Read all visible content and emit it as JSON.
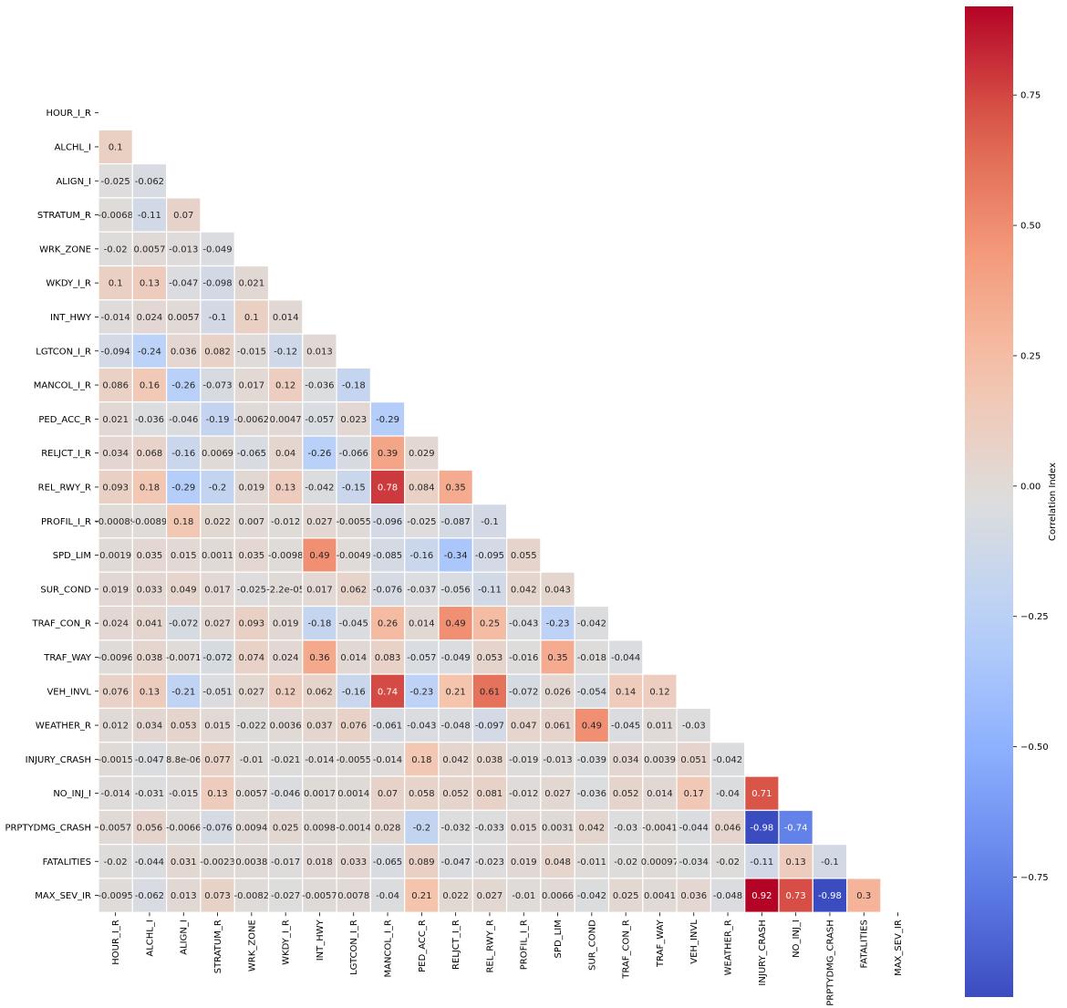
{
  "chart_data": {
    "type": "heatmap",
    "variables": [
      "HOUR_I_R",
      "ALCHL_I",
      "ALIGN_I",
      "STRATUM_R",
      "WRK_ZONE",
      "WKDY_I_R",
      "INT_HWY",
      "LGTCON_I_R",
      "MANCOL_I_R",
      "PED_ACC_R",
      "RELJCT_I_R",
      "REL_RWY_R",
      "PROFIL_I_R",
      "SPD_LIM",
      "SUR_COND",
      "TRAF_CON_R",
      "TRAF_WAY",
      "VEH_INVL",
      "WEATHER_R",
      "INJURY_CRASH",
      "NO_INJ_I",
      "PRPTYDMG_CRASH",
      "FATALITIES",
      "MAX_SEV_IR"
    ],
    "mask": "upper triangle including diagonal",
    "values": [
      [],
      [
        0.1
      ],
      [
        -0.025,
        -0.062
      ],
      [
        -0.0068,
        -0.11,
        0.07
      ],
      [
        -0.02,
        0.0057,
        -0.013,
        -0.049
      ],
      [
        0.1,
        0.13,
        -0.047,
        -0.098,
        0.021
      ],
      [
        -0.014,
        0.024,
        0.0057,
        -0.1,
        0.1,
        0.014
      ],
      [
        -0.094,
        -0.24,
        0.036,
        0.082,
        -0.015,
        -0.12,
        0.013
      ],
      [
        0.086,
        0.16,
        -0.26,
        -0.073,
        0.017,
        0.12,
        -0.036,
        -0.18
      ],
      [
        0.021,
        -0.036,
        -0.046,
        -0.19,
        -0.0062,
        0.0047,
        -0.057,
        0.023,
        -0.29
      ],
      [
        0.034,
        0.068,
        -0.16,
        0.0069,
        -0.065,
        0.04,
        -0.26,
        -0.066,
        0.39,
        0.029
      ],
      [
        0.093,
        0.18,
        -0.29,
        -0.2,
        0.019,
        0.13,
        -0.042,
        -0.15,
        0.78,
        0.084,
        0.35
      ],
      [
        -0.00089,
        -0.0089,
        0.18,
        0.022,
        0.007,
        -0.012,
        0.027,
        -0.0055,
        -0.096,
        -0.025,
        -0.087,
        -0.1
      ],
      [
        0.0019,
        0.035,
        0.015,
        0.0011,
        0.035,
        -0.0098,
        0.49,
        -0.0049,
        -0.085,
        -0.16,
        -0.34,
        -0.095,
        0.055
      ],
      [
        0.019,
        0.033,
        0.049,
        0.017,
        -0.025,
        -2.2e-05,
        0.017,
        0.062,
        -0.076,
        -0.037,
        -0.056,
        -0.11,
        0.042,
        0.043
      ],
      [
        0.024,
        0.041,
        -0.072,
        0.027,
        0.093,
        0.019,
        -0.18,
        -0.045,
        0.26,
        0.014,
        0.49,
        0.25,
        -0.043,
        -0.23,
        -0.042
      ],
      [
        -0.0096,
        0.038,
        -0.0071,
        -0.072,
        0.074,
        0.024,
        0.36,
        0.014,
        0.083,
        -0.057,
        -0.049,
        0.053,
        -0.016,
        0.35,
        -0.018,
        -0.044
      ],
      [
        0.076,
        0.13,
        -0.21,
        -0.051,
        0.027,
        0.12,
        0.062,
        -0.16,
        0.74,
        -0.23,
        0.21,
        0.61,
        -0.072,
        0.026,
        -0.054,
        0.14,
        0.12
      ],
      [
        0.012,
        0.034,
        0.053,
        0.015,
        -0.022,
        0.0036,
        0.037,
        0.076,
        -0.061,
        -0.043,
        -0.048,
        -0.097,
        0.047,
        0.061,
        0.49,
        -0.045,
        0.011,
        -0.03
      ],
      [
        -0.0015,
        -0.047,
        8.8e-06,
        0.077,
        -0.01,
        -0.021,
        -0.014,
        -0.0055,
        -0.014,
        0.18,
        0.042,
        0.038,
        -0.019,
        -0.013,
        -0.039,
        0.034,
        0.0039,
        0.051,
        -0.042
      ],
      [
        -0.014,
        -0.031,
        -0.015,
        0.13,
        0.0057,
        -0.046,
        0.0017,
        0.0014,
        0.07,
        0.058,
        0.052,
        0.081,
        -0.012,
        0.027,
        -0.036,
        0.052,
        0.014,
        0.17,
        -0.04,
        0.71
      ],
      [
        0.0057,
        0.056,
        -0.0066,
        -0.076,
        0.0094,
        0.025,
        0.0098,
        -0.0014,
        0.028,
        -0.2,
        -0.032,
        -0.033,
        0.015,
        0.0031,
        0.042,
        -0.03,
        -0.0041,
        -0.044,
        0.046,
        -0.98,
        -0.74
      ],
      [
        -0.02,
        -0.044,
        0.031,
        -0.0023,
        0.0038,
        -0.017,
        0.018,
        0.033,
        -0.065,
        0.089,
        -0.047,
        -0.023,
        0.019,
        0.048,
        -0.011,
        -0.02,
        0.00097,
        -0.034,
        -0.02,
        -0.11,
        0.13,
        -0.1
      ],
      [
        -0.0095,
        -0.062,
        0.013,
        0.073,
        -0.0082,
        -0.027,
        -0.0057,
        0.0078,
        -0.04,
        0.21,
        0.022,
        0.027,
        -0.01,
        0.0066,
        -0.042,
        0.025,
        0.0041,
        0.036,
        -0.048,
        0.92,
        0.73,
        -0.98,
        0.3
      ]
    ],
    "labels": [
      [],
      [
        "0.1"
      ],
      [
        "-0.025",
        "-0.062"
      ],
      [
        "-0.0068",
        "-0.11",
        "0.07"
      ],
      [
        "-0.02",
        "0.0057",
        "-0.013",
        "-0.049"
      ],
      [
        "0.1",
        "0.13",
        "-0.047",
        "-0.098",
        "0.021"
      ],
      [
        "-0.014",
        "0.024",
        "0.0057",
        "-0.1",
        "0.1",
        "0.014"
      ],
      [
        "-0.094",
        "-0.24",
        "0.036",
        "0.082",
        "-0.015",
        "-0.12",
        "0.013"
      ],
      [
        "0.086",
        "0.16",
        "-0.26",
        "-0.073",
        "0.017",
        "0.12",
        "-0.036",
        "-0.18"
      ],
      [
        "0.021",
        "-0.036",
        "-0.046",
        "-0.19",
        "-0.0062",
        "0.0047",
        "-0.057",
        "0.023",
        "-0.29"
      ],
      [
        "0.034",
        "0.068",
        "-0.16",
        "0.0069",
        "-0.065",
        "0.04",
        "-0.26",
        "-0.066",
        "0.39",
        "0.029"
      ],
      [
        "0.093",
        "0.18",
        "-0.29",
        "-0.2",
        "0.019",
        "0.13",
        "-0.042",
        "-0.15",
        "0.78",
        "0.084",
        "0.35"
      ],
      [
        "-0.00089",
        "-0.0089",
        "0.18",
        "0.022",
        "0.007",
        "-0.012",
        "0.027",
        "-0.0055",
        "-0.096",
        "-0.025",
        "-0.087",
        "-0.1"
      ],
      [
        "0.0019",
        "0.035",
        "0.015",
        "0.0011",
        "0.035",
        "-0.0098",
        "0.49",
        "-0.0049",
        "-0.085",
        "-0.16",
        "-0.34",
        "-0.095",
        "0.055"
      ],
      [
        "0.019",
        "0.033",
        "0.049",
        "0.017",
        "-0.025",
        "-2.2e-05",
        "0.017",
        "0.062",
        "-0.076",
        "-0.037",
        "-0.056",
        "-0.11",
        "0.042",
        "0.043"
      ],
      [
        "0.024",
        "0.041",
        "-0.072",
        "0.027",
        "0.093",
        "0.019",
        "-0.18",
        "-0.045",
        "0.26",
        "0.014",
        "0.49",
        "0.25",
        "-0.043",
        "-0.23",
        "-0.042"
      ],
      [
        "-0.0096",
        "0.038",
        "-0.0071",
        "-0.072",
        "0.074",
        "0.024",
        "0.36",
        "0.014",
        "0.083",
        "-0.057",
        "-0.049",
        "0.053",
        "-0.016",
        "0.35",
        "-0.018",
        "-0.044"
      ],
      [
        "0.076",
        "0.13",
        "-0.21",
        "-0.051",
        "0.027",
        "0.12",
        "0.062",
        "-0.16",
        "0.74",
        "-0.23",
        "0.21",
        "0.61",
        "-0.072",
        "0.026",
        "-0.054",
        "0.14",
        "0.12"
      ],
      [
        "0.012",
        "0.034",
        "0.053",
        "0.015",
        "-0.022",
        "0.0036",
        "0.037",
        "0.076",
        "-0.061",
        "-0.043",
        "-0.048",
        "-0.097",
        "0.047",
        "0.061",
        "0.49",
        "-0.045",
        "0.011",
        "-0.03"
      ],
      [
        "-0.0015",
        "-0.047",
        "8.8e-06",
        "0.077",
        "-0.01",
        "-0.021",
        "-0.014",
        "-0.0055",
        "-0.014",
        "0.18",
        "0.042",
        "0.038",
        "-0.019",
        "-0.013",
        "-0.039",
        "0.034",
        "0.0039",
        "0.051",
        "-0.042"
      ],
      [
        "-0.014",
        "-0.031",
        "-0.015",
        "0.13",
        "0.0057",
        "-0.046",
        "0.0017",
        "0.0014",
        "0.07",
        "0.058",
        "0.052",
        "0.081",
        "-0.012",
        "0.027",
        "-0.036",
        "0.052",
        "0.014",
        "0.17",
        "-0.04",
        "0.71"
      ],
      [
        "0.0057",
        "0.056",
        "-0.0066",
        "-0.076",
        "0.0094",
        "0.025",
        "0.0098",
        "-0.0014",
        "0.028",
        "-0.2",
        "-0.032",
        "-0.033",
        "0.015",
        "0.0031",
        "0.042",
        "-0.03",
        "-0.0041",
        "-0.044",
        "0.046",
        "-0.98",
        "-0.74"
      ],
      [
        "-0.02",
        "-0.044",
        "0.031",
        "-0.0023",
        "0.0038",
        "-0.017",
        "0.018",
        "0.033",
        "-0.065",
        "0.089",
        "-0.047",
        "-0.023",
        "0.019",
        "0.048",
        "-0.011",
        "-0.02",
        "0.00097",
        "-0.034",
        "-0.02",
        "-0.11",
        "0.13",
        "-0.1"
      ],
      [
        "-0.0095",
        "-0.062",
        "0.013",
        "0.073",
        "-0.0082",
        "-0.027",
        "-0.0057",
        "0.0078",
        "-0.04",
        "0.21",
        "0.022",
        "0.027",
        "-0.01",
        "0.0066",
        "-0.042",
        "0.025",
        "0.0041",
        "0.036",
        "-0.048",
        "0.92",
        "0.73",
        "-0.98",
        "0.3"
      ]
    ],
    "colorbar": {
      "label": "Correlation Index",
      "vmin": -0.98,
      "vmax": 0.92,
      "ticks": [
        0.75,
        0.5,
        0.25,
        0.0,
        -0.25,
        -0.5,
        -0.75
      ],
      "tick_labels": [
        "0.75",
        "0.50",
        "0.25",
        "0.00",
        "−0.25",
        "−0.50",
        "−0.75"
      ],
      "colormap": "coolwarm",
      "colors": [
        "#3b4cc0",
        "#b40426"
      ]
    },
    "grid": false,
    "legend": "colorbar-right"
  }
}
